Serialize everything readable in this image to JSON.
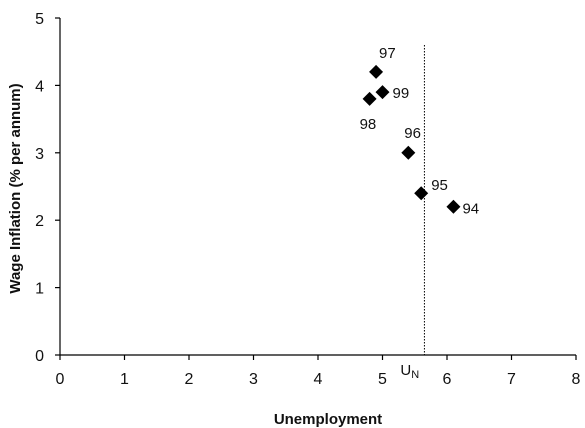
{
  "chart_data": {
    "type": "scatter",
    "title": "",
    "xlabel": "Unemployment",
    "ylabel": "Wage Inflation (% per annum)",
    "xlim": [
      0,
      8
    ],
    "ylim": [
      0,
      5
    ],
    "x_ticks": [
      "0",
      "1",
      "2",
      "3",
      "4",
      "5",
      "6",
      "7",
      "8"
    ],
    "y_ticks": [
      "0",
      "1",
      "2",
      "3",
      "4",
      "5"
    ],
    "grid": false,
    "marker": "diamond",
    "marker_color": "#000000",
    "points": [
      {
        "label": "94",
        "x": 6.1,
        "y": 2.2
      },
      {
        "label": "95",
        "x": 5.6,
        "y": 2.4
      },
      {
        "label": "96",
        "x": 5.4,
        "y": 3.0
      },
      {
        "label": "97",
        "x": 4.9,
        "y": 4.2
      },
      {
        "label": "98",
        "x": 4.8,
        "y": 3.8
      },
      {
        "label": "99",
        "x": 5.0,
        "y": 3.9
      }
    ],
    "reference_line": {
      "label_main": "U",
      "label_sub": "N",
      "x": 5.65,
      "style": "dotted"
    }
  }
}
